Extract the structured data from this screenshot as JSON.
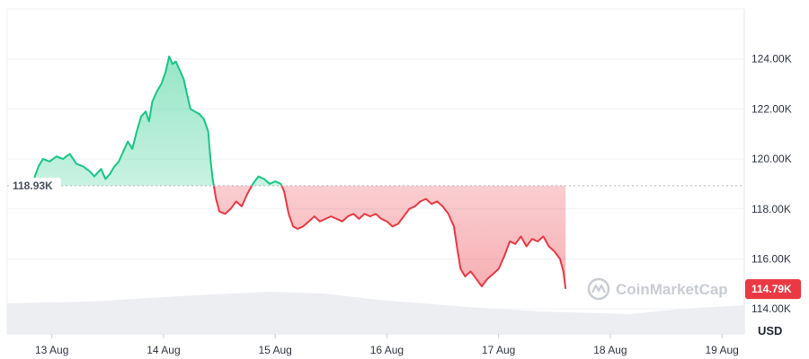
{
  "chart_data": {
    "type": "area",
    "unit": "USD",
    "watermark": "CoinMarketCap",
    "baseline_value": 118930,
    "baseline_label": "118.93K",
    "last_value": 114790,
    "last_label": "114.79K",
    "ylim": [
      113000,
      126000
    ],
    "yticks": [
      {
        "value": 114000,
        "label": "114.00K"
      },
      {
        "value": 116000,
        "label": "116.00K"
      },
      {
        "value": 118000,
        "label": "118.00K"
      },
      {
        "value": 120000,
        "label": "120.00K"
      },
      {
        "value": 122000,
        "label": "122.00K"
      },
      {
        "value": 124000,
        "label": "124.00K"
      }
    ],
    "xlim": [
      12.6,
      19.2
    ],
    "xticks": [
      {
        "value": 13,
        "label": "13 Aug"
      },
      {
        "value": 14,
        "label": "14 Aug"
      },
      {
        "value": 15,
        "label": "15 Aug"
      },
      {
        "value": 16,
        "label": "16 Aug"
      },
      {
        "value": 17,
        "label": "17 Aug"
      },
      {
        "value": 18,
        "label": "18 Aug"
      },
      {
        "value": 19,
        "label": "19 Aug"
      }
    ],
    "colors": {
      "up": "#16c784",
      "down": "#ea3943",
      "grid": "#eff2f5",
      "volume": "#eceef2"
    },
    "series": [
      {
        "points": [
          [
            12.62,
            118.9
          ],
          [
            12.72,
            118.8
          ],
          [
            12.8,
            119.0
          ],
          [
            12.84,
            119.2
          ],
          [
            12.88,
            119.7
          ],
          [
            12.92,
            120.0
          ],
          [
            12.98,
            119.9
          ],
          [
            13.04,
            120.1
          ],
          [
            13.1,
            120.0
          ],
          [
            13.16,
            120.2
          ],
          [
            13.22,
            119.8
          ],
          [
            13.28,
            119.7
          ],
          [
            13.34,
            119.5
          ],
          [
            13.38,
            119.3
          ],
          [
            13.44,
            119.6
          ],
          [
            13.48,
            119.2
          ],
          [
            13.52,
            119.4
          ],
          [
            13.56,
            119.7
          ],
          [
            13.6,
            119.9
          ],
          [
            13.64,
            120.3
          ],
          [
            13.68,
            120.7
          ],
          [
            13.72,
            120.4
          ],
          [
            13.76,
            121.1
          ],
          [
            13.8,
            121.7
          ],
          [
            13.84,
            121.9
          ],
          [
            13.87,
            121.5
          ],
          [
            13.9,
            122.3
          ],
          [
            13.94,
            122.7
          ],
          [
            13.98,
            123.0
          ],
          [
            14.02,
            123.5
          ],
          [
            14.05,
            124.1
          ],
          [
            14.08,
            123.8
          ],
          [
            14.11,
            123.9
          ],
          [
            14.14,
            123.6
          ],
          [
            14.18,
            123.2
          ],
          [
            14.21,
            122.6
          ],
          [
            14.24,
            122.0
          ],
          [
            14.28,
            121.9
          ],
          [
            14.32,
            121.8
          ],
          [
            14.36,
            121.6
          ],
          [
            14.4,
            121.1
          ],
          [
            14.42,
            120.0
          ],
          [
            14.44,
            119.2
          ],
          [
            14.47,
            118.4
          ],
          [
            14.5,
            117.9
          ],
          [
            14.55,
            117.8
          ],
          [
            14.6,
            118.0
          ],
          [
            14.65,
            118.3
          ],
          [
            14.7,
            118.1
          ],
          [
            14.75,
            118.6
          ],
          [
            14.8,
            119.0
          ],
          [
            14.85,
            119.3
          ],
          [
            14.9,
            119.2
          ],
          [
            14.95,
            119.0
          ],
          [
            15.0,
            119.1
          ],
          [
            15.05,
            119.0
          ],
          [
            15.08,
            118.7
          ],
          [
            15.12,
            117.8
          ],
          [
            15.16,
            117.3
          ],
          [
            15.2,
            117.2
          ],
          [
            15.25,
            117.3
          ],
          [
            15.3,
            117.5
          ],
          [
            15.35,
            117.7
          ],
          [
            15.4,
            117.5
          ],
          [
            15.45,
            117.6
          ],
          [
            15.5,
            117.7
          ],
          [
            15.55,
            117.6
          ],
          [
            15.6,
            117.5
          ],
          [
            15.65,
            117.7
          ],
          [
            15.7,
            117.8
          ],
          [
            15.75,
            117.6
          ],
          [
            15.8,
            117.8
          ],
          [
            15.85,
            117.7
          ],
          [
            15.9,
            117.8
          ],
          [
            15.95,
            117.6
          ],
          [
            16.0,
            117.5
          ],
          [
            16.05,
            117.3
          ],
          [
            16.1,
            117.4
          ],
          [
            16.15,
            117.7
          ],
          [
            16.2,
            118.0
          ],
          [
            16.25,
            118.1
          ],
          [
            16.3,
            118.3
          ],
          [
            16.35,
            118.4
          ],
          [
            16.4,
            118.2
          ],
          [
            16.45,
            118.3
          ],
          [
            16.5,
            118.1
          ],
          [
            16.55,
            117.8
          ],
          [
            16.6,
            117.3
          ],
          [
            16.63,
            116.4
          ],
          [
            16.66,
            115.6
          ],
          [
            16.7,
            115.3
          ],
          [
            16.75,
            115.5
          ],
          [
            16.8,
            115.2
          ],
          [
            16.85,
            114.9
          ],
          [
            16.9,
            115.2
          ],
          [
            16.95,
            115.4
          ],
          [
            17.0,
            115.6
          ],
          [
            17.05,
            116.1
          ],
          [
            17.1,
            116.7
          ],
          [
            17.15,
            116.6
          ],
          [
            17.2,
            116.9
          ],
          [
            17.25,
            116.5
          ],
          [
            17.3,
            116.8
          ],
          [
            17.35,
            116.7
          ],
          [
            17.4,
            116.9
          ],
          [
            17.45,
            116.5
          ],
          [
            17.5,
            116.3
          ],
          [
            17.55,
            116.0
          ],
          [
            17.58,
            115.5
          ],
          [
            17.6,
            114.8
          ]
        ]
      }
    ]
  }
}
